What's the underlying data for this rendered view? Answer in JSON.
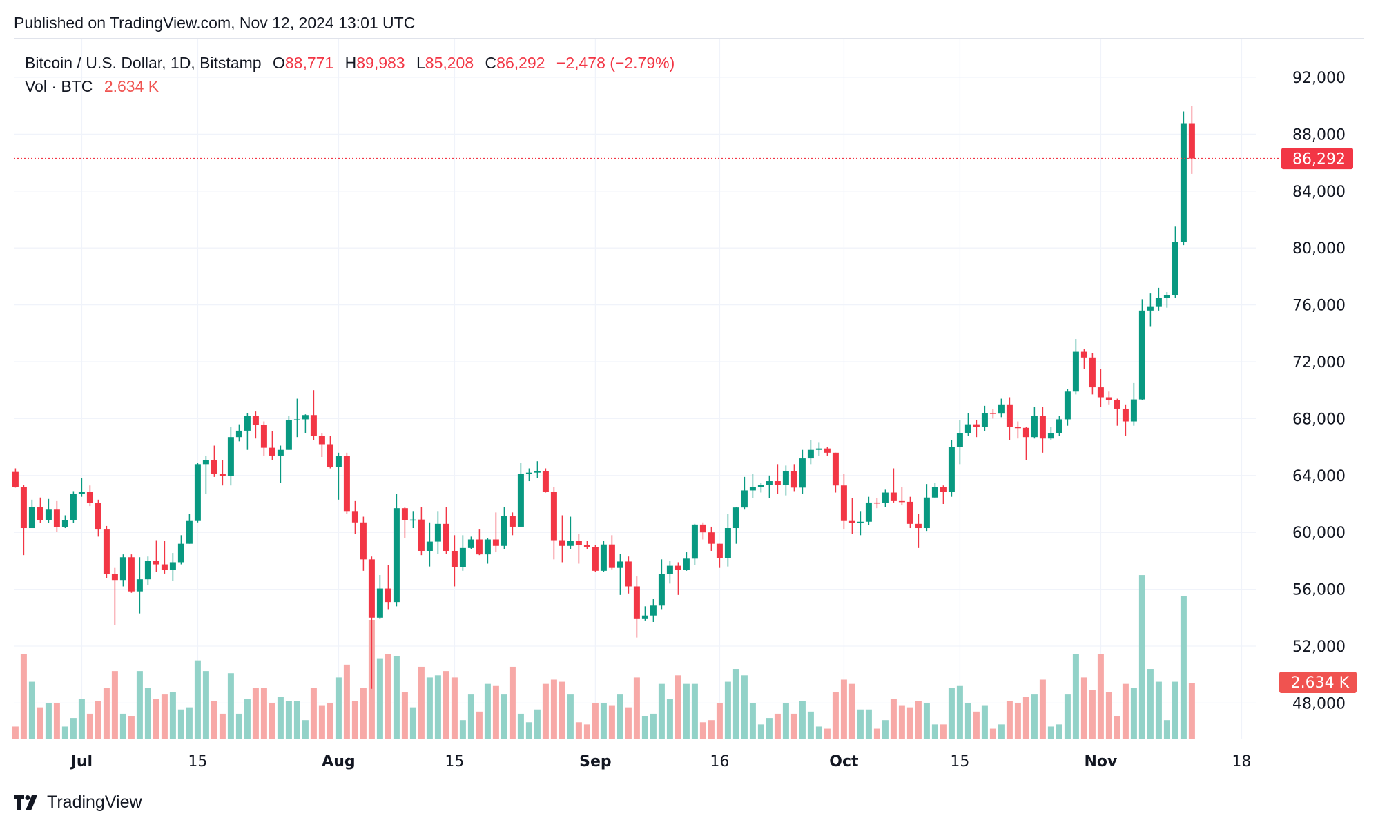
{
  "published": "Published on TradingView.com, Nov 12, 2024 13:01 UTC",
  "legend": {
    "symbol": "Bitcoin / U.S. Dollar, 1D, Bitstamp",
    "o_label": "O",
    "o": "88,771",
    "h_label": "H",
    "h": "89,983",
    "l_label": "L",
    "l": "85,208",
    "c_label": "C",
    "c": "86,292",
    "change": "−2,478 (−2.79%)",
    "vol_label": "Vol · BTC",
    "vol": "2.634 K"
  },
  "logo": "TradingView",
  "colors": {
    "up": "#089981",
    "down": "#f23645",
    "up_vol": "#92d2c8",
    "down_vol": "#f7a9a7",
    "grid": "#f0f3fa"
  },
  "chart_data": {
    "type": "candlestick",
    "y_ticks": [
      "92,000",
      "88,000",
      "84,000",
      "80,000",
      "76,000",
      "72,000",
      "68,000",
      "64,000",
      "60,000",
      "56,000",
      "52,000",
      "48,000"
    ],
    "x_ticks": [
      {
        "label": "Jul",
        "date": "Jul 1",
        "bold": true
      },
      {
        "label": "15",
        "date": "Jul 15",
        "bold": false
      },
      {
        "label": "Aug",
        "date": "Aug 1",
        "bold": true
      },
      {
        "label": "15",
        "date": "Aug 15",
        "bold": false
      },
      {
        "label": "Sep",
        "date": "Sep 1",
        "bold": true
      },
      {
        "label": "16",
        "date": "Sep 16",
        "bold": false
      },
      {
        "label": "Oct",
        "date": "Oct 1",
        "bold": true
      },
      {
        "label": "15",
        "date": "Oct 15",
        "bold": false
      },
      {
        "label": "Nov",
        "date": "Nov 1",
        "bold": true
      },
      {
        "label": "18",
        "date": "Nov 18",
        "bold": false
      }
    ],
    "last_price_label": "86,292",
    "last_volume_label": "2.634 K",
    "volume_unit": "K BTC",
    "first_date": "Jun 23",
    "columns": [
      "open",
      "high",
      "low",
      "close",
      "volume"
    ],
    "candles": [
      [
        64250,
        64500,
        63150,
        63200,
        0.6
      ],
      [
        63200,
        63350,
        58400,
        60300,
        4.0
      ],
      [
        60300,
        62300,
        60300,
        61800,
        2.7
      ],
      [
        61800,
        62450,
        60650,
        60850,
        1.5
      ],
      [
        60850,
        62350,
        60650,
        61600,
        1.7
      ],
      [
        61600,
        62200,
        60050,
        60350,
        1.7
      ],
      [
        60350,
        61200,
        60300,
        60850,
        0.6
      ],
      [
        60850,
        62900,
        60650,
        62700,
        1.0
      ],
      [
        62700,
        63800,
        62500,
        62850,
        1.9
      ],
      [
        62850,
        63300,
        61850,
        62050,
        1.2
      ],
      [
        62050,
        62300,
        59700,
        60200,
        1.8
      ],
      [
        60200,
        60450,
        56800,
        57050,
        2.4
      ],
      [
        57050,
        57500,
        53500,
        56650,
        3.2
      ],
      [
        56650,
        58450,
        56200,
        58250,
        1.2
      ],
      [
        58250,
        58450,
        55750,
        55850,
        1.1
      ],
      [
        55850,
        58250,
        54300,
        56700,
        3.2
      ],
      [
        56700,
        58300,
        56300,
        58000,
        2.4
      ],
      [
        58000,
        59450,
        57200,
        57750,
        1.9
      ],
      [
        57750,
        59400,
        57100,
        57350,
        2.1
      ],
      [
        57350,
        58550,
        56600,
        57900,
        2.2
      ],
      [
        57900,
        59800,
        57750,
        59200,
        1.4
      ],
      [
        59200,
        61300,
        59200,
        60800,
        1.5
      ],
      [
        60800,
        64900,
        60700,
        64800,
        3.7
      ],
      [
        64800,
        65400,
        62700,
        65100,
        3.2
      ],
      [
        65100,
        66100,
        63900,
        64100,
        1.8
      ],
      [
        64100,
        65100,
        63300,
        63950,
        1.2
      ],
      [
        63950,
        67400,
        63300,
        66700,
        3.1
      ],
      [
        66700,
        67600,
        66400,
        67150,
        1.2
      ],
      [
        67150,
        68400,
        65800,
        68200,
        1.9
      ],
      [
        68200,
        68500,
        66600,
        67550,
        2.4
      ],
      [
        67550,
        67800,
        65400,
        65950,
        2.4
      ],
      [
        65950,
        67100,
        65100,
        65400,
        1.7
      ],
      [
        65400,
        66100,
        63500,
        65800,
        2.0
      ],
      [
        65800,
        68200,
        65800,
        67900,
        1.8
      ],
      [
        67900,
        69400,
        66700,
        67950,
        1.8
      ],
      [
        67950,
        68300,
        67000,
        68250,
        0.9
      ],
      [
        68250,
        70000,
        66500,
        66800,
        2.4
      ],
      [
        66800,
        67000,
        65300,
        66200,
        1.6
      ],
      [
        66200,
        66800,
        64500,
        64600,
        1.7
      ],
      [
        64600,
        65600,
        62300,
        65350,
        2.9
      ],
      [
        65350,
        65600,
        61300,
        61500,
        3.5
      ],
      [
        61500,
        62200,
        59900,
        60700,
        1.8
      ],
      [
        60700,
        61100,
        57300,
        58100,
        2.4
      ],
      [
        58100,
        58300,
        49000,
        54000,
        5.6
      ],
      [
        54000,
        57000,
        53900,
        56050,
        3.8
      ],
      [
        56050,
        57700,
        54600,
        55100,
        4.0
      ],
      [
        55100,
        62700,
        54800,
        61700,
        3.9
      ],
      [
        61700,
        61800,
        59600,
        60850,
        2.2
      ],
      [
        60850,
        61500,
        60300,
        60900,
        1.5
      ],
      [
        60900,
        61800,
        58400,
        58700,
        3.4
      ],
      [
        58700,
        60700,
        57600,
        59350,
        2.9
      ],
      [
        59350,
        61500,
        58500,
        60600,
        3.0
      ],
      [
        60600,
        61800,
        58500,
        58700,
        3.2
      ],
      [
        58700,
        59800,
        56200,
        57550,
        2.9
      ],
      [
        57550,
        59800,
        57300,
        58900,
        0.9
      ],
      [
        58900,
        59700,
        58800,
        59500,
        2.1
      ],
      [
        59500,
        60200,
        58400,
        58450,
        1.3
      ],
      [
        58450,
        59600,
        57800,
        59500,
        2.6
      ],
      [
        59500,
        61400,
        58600,
        59050,
        2.5
      ],
      [
        59050,
        61800,
        58800,
        61150,
        2.1
      ],
      [
        61150,
        61400,
        59800,
        60400,
        3.4
      ],
      [
        60400,
        64900,
        60350,
        64100,
        1.2
      ],
      [
        64100,
        64500,
        63600,
        64200,
        0.8
      ],
      [
        64200,
        65000,
        63800,
        64300,
        1.4
      ],
      [
        64300,
        64500,
        62800,
        62850,
        2.6
      ],
      [
        62850,
        63200,
        58100,
        59450,
        2.8
      ],
      [
        59450,
        61200,
        57900,
        59050,
        2.7
      ],
      [
        59050,
        61100,
        58800,
        59400,
        2.1
      ],
      [
        59400,
        59900,
        57800,
        59100,
        0.8
      ],
      [
        59100,
        59400,
        58800,
        58950,
        0.7
      ],
      [
        58950,
        59100,
        57200,
        57300,
        1.7
      ],
      [
        57300,
        59400,
        57200,
        59150,
        1.7
      ],
      [
        59150,
        59800,
        57400,
        57500,
        1.6
      ],
      [
        57500,
        58500,
        55600,
        57950,
        2.1
      ],
      [
        57950,
        58300,
        55700,
        56200,
        1.5
      ],
      [
        56200,
        56900,
        52600,
        53950,
        2.9
      ],
      [
        53950,
        54800,
        53800,
        54150,
        1.1
      ],
      [
        54150,
        55300,
        53700,
        54850,
        1.2
      ],
      [
        54850,
        58100,
        54600,
        57050,
        2.6
      ],
      [
        57050,
        58000,
        56400,
        57650,
        1.9
      ],
      [
        57650,
        57900,
        55600,
        57350,
        3.0
      ],
      [
        57350,
        58600,
        57300,
        58150,
        2.6
      ],
      [
        58150,
        60600,
        57700,
        60550,
        2.6
      ],
      [
        60550,
        60700,
        59500,
        60000,
        0.8
      ],
      [
        60000,
        60400,
        58700,
        59200,
        0.9
      ],
      [
        59200,
        59200,
        57500,
        58200,
        1.7
      ],
      [
        58200,
        61300,
        57600,
        60300,
        2.7
      ],
      [
        60300,
        61800,
        59200,
        61750,
        3.3
      ],
      [
        61750,
        63900,
        61600,
        62950,
        3.0
      ],
      [
        62950,
        64100,
        62400,
        63200,
        1.7
      ],
      [
        63200,
        63500,
        62800,
        63350,
        0.7
      ],
      [
        63350,
        64000,
        62400,
        63600,
        1.0
      ],
      [
        63600,
        64800,
        62700,
        63350,
        1.2
      ],
      [
        63350,
        64700,
        62600,
        64300,
        1.7
      ],
      [
        64300,
        64800,
        62900,
        63150,
        1.2
      ],
      [
        63150,
        65800,
        62700,
        65200,
        1.8
      ],
      [
        65200,
        66500,
        64800,
        65800,
        1.3
      ],
      [
        65800,
        66300,
        65400,
        65900,
        0.6
      ],
      [
        65900,
        66000,
        65400,
        65600,
        0.5
      ],
      [
        65600,
        65600,
        62800,
        63300,
        2.2
      ],
      [
        63300,
        64100,
        60200,
        60800,
        2.8
      ],
      [
        60800,
        62400,
        59900,
        60650,
        2.6
      ],
      [
        60650,
        61500,
        59800,
        60750,
        1.4
      ],
      [
        60750,
        62500,
        60500,
        62100,
        1.4
      ],
      [
        62100,
        62400,
        61700,
        62050,
        0.5
      ],
      [
        62050,
        63000,
        61800,
        62800,
        0.9
      ],
      [
        62800,
        64500,
        62100,
        62200,
        1.9
      ],
      [
        62200,
        63200,
        61900,
        62150,
        1.6
      ],
      [
        62150,
        62500,
        60300,
        60600,
        1.5
      ],
      [
        60600,
        61300,
        58900,
        60300,
        1.8
      ],
      [
        60300,
        63400,
        60100,
        62450,
        1.7
      ],
      [
        62450,
        63500,
        62400,
        63200,
        0.7
      ],
      [
        63200,
        63300,
        62000,
        62850,
        0.7
      ],
      [
        62850,
        66500,
        62500,
        66000,
        2.4
      ],
      [
        66000,
        67900,
        64800,
        67000,
        2.5
      ],
      [
        67000,
        68400,
        66800,
        67600,
        1.7
      ],
      [
        67600,
        67900,
        66700,
        67400,
        1.3
      ],
      [
        67400,
        68900,
        67100,
        68400,
        1.6
      ],
      [
        68400,
        68700,
        68000,
        68350,
        0.5
      ],
      [
        68350,
        69400,
        68100,
        69000,
        0.7
      ],
      [
        69000,
        69500,
        66500,
        67400,
        1.8
      ],
      [
        67400,
        67800,
        66600,
        67350,
        1.7
      ],
      [
        67350,
        67400,
        65100,
        66700,
        2.0
      ],
      [
        66700,
        68800,
        66600,
        68200,
        2.1
      ],
      [
        68200,
        68800,
        65600,
        66600,
        2.8
      ],
      [
        66600,
        67400,
        66500,
        67000,
        0.6
      ],
      [
        67000,
        68200,
        66800,
        67950,
        0.7
      ],
      [
        67950,
        70100,
        67500,
        69900,
        2.1
      ],
      [
        69900,
        73600,
        69700,
        72700,
        4.0
      ],
      [
        72700,
        72900,
        71500,
        72300,
        2.9
      ],
      [
        72300,
        72600,
        69700,
        70200,
        2.3
      ],
      [
        70200,
        71500,
        68800,
        69500,
        4.0
      ],
      [
        69500,
        69900,
        69000,
        69300,
        2.2
      ],
      [
        69300,
        69400,
        67500,
        68700,
        1.1
      ],
      [
        68700,
        69000,
        66800,
        67800,
        2.6
      ],
      [
        67800,
        70500,
        67500,
        69350,
        2.4
      ],
      [
        69350,
        76400,
        69300,
        75600,
        7.7
      ],
      [
        75600,
        76800,
        74500,
        75900,
        3.3
      ],
      [
        75900,
        77200,
        75600,
        76500,
        2.7
      ],
      [
        76500,
        76900,
        75800,
        76700,
        0.9
      ],
      [
        76700,
        81500,
        76500,
        80400,
        2.7
      ],
      [
        80400,
        89600,
        80200,
        88771,
        6.7
      ],
      [
        88771,
        89983,
        85208,
        86292,
        2.634
      ]
    ]
  }
}
